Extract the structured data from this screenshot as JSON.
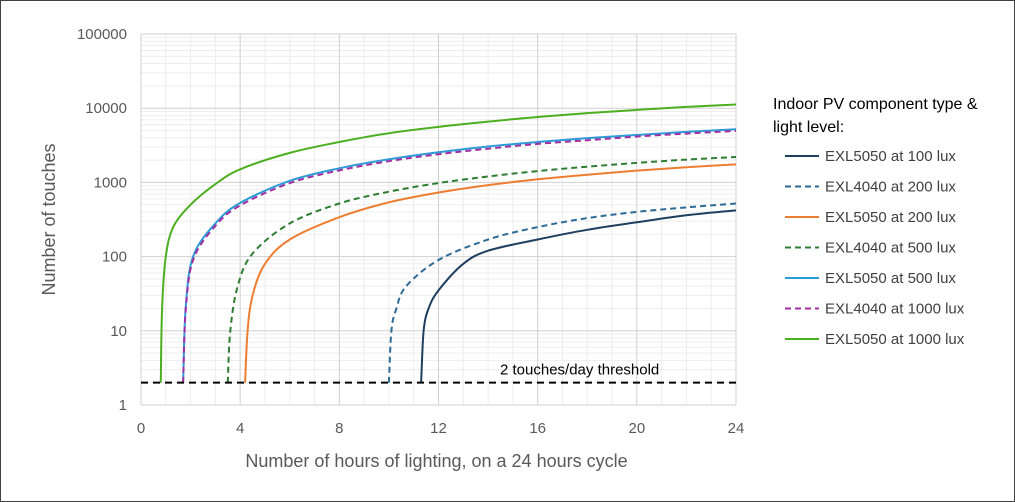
{
  "chart_data": {
    "type": "line",
    "title": "",
    "xlabel": "Number of hours of lighting, on a 24 hours cycle",
    "ylabel": "Number of touches",
    "xlim": [
      0,
      24
    ],
    "ylim": [
      1,
      100000
    ],
    "yscale": "log",
    "grid": true,
    "legend_position": "right",
    "x_ticks": [
      "0",
      "4",
      "8",
      "12",
      "16",
      "20",
      "24"
    ],
    "y_ticks": [
      "1",
      "10",
      "100",
      "1000",
      "10000",
      "100000"
    ],
    "legend_title": [
      "Indoor PV component type &",
      "light level:"
    ],
    "series": [
      {
        "name": "EXL5050 at 100 lux",
        "color": "#1f3f5f",
        "dash": false,
        "points": [
          [
            11.3,
            2
          ],
          [
            11.4,
            10
          ],
          [
            11.6,
            20
          ],
          [
            12,
            35
          ],
          [
            13,
            80
          ],
          [
            14,
            120
          ],
          [
            16,
            170
          ],
          [
            18,
            230
          ],
          [
            20,
            290
          ],
          [
            22,
            360
          ],
          [
            24,
            420
          ]
        ]
      },
      {
        "name": "EXL4040 at 200 lux",
        "color": "#2e6a96",
        "dash": true,
        "points": [
          [
            10,
            2
          ],
          [
            10.1,
            10
          ],
          [
            10.3,
            20
          ],
          [
            10.7,
            40
          ],
          [
            12,
            90
          ],
          [
            14,
            170
          ],
          [
            16,
            250
          ],
          [
            18,
            330
          ],
          [
            20,
            400
          ],
          [
            22,
            460
          ],
          [
            24,
            520
          ]
        ]
      },
      {
        "name": "EXL5050 at 200 lux",
        "color": "#ed7d31",
        "dash": false,
        "points": [
          [
            4.2,
            2
          ],
          [
            4.3,
            10
          ],
          [
            4.5,
            30
          ],
          [
            5,
            80
          ],
          [
            6,
            170
          ],
          [
            8,
            340
          ],
          [
            10,
            540
          ],
          [
            12,
            730
          ],
          [
            14,
            920
          ],
          [
            16,
            1100
          ],
          [
            18,
            1270
          ],
          [
            20,
            1440
          ],
          [
            22,
            1600
          ],
          [
            24,
            1750
          ]
        ]
      },
      {
        "name": "EXL4040 at 500 lux",
        "color": "#2e7d32",
        "dash": true,
        "points": [
          [
            3.5,
            2
          ],
          [
            3.6,
            10
          ],
          [
            3.9,
            40
          ],
          [
            4.5,
            110
          ],
          [
            6,
            280
          ],
          [
            8,
            520
          ],
          [
            10,
            750
          ],
          [
            12,
            980
          ],
          [
            14,
            1200
          ],
          [
            16,
            1420
          ],
          [
            18,
            1630
          ],
          [
            20,
            1830
          ],
          [
            22,
            2030
          ],
          [
            24,
            2200
          ]
        ]
      },
      {
        "name": "EXL5050 at 500 lux",
        "color": "#2e9ad8",
        "dash": false,
        "points": [
          [
            1.7,
            2
          ],
          [
            1.8,
            20
          ],
          [
            2.1,
            100
          ],
          [
            3,
            280
          ],
          [
            4,
            530
          ],
          [
            6,
            1050
          ],
          [
            8,
            1550
          ],
          [
            10,
            2050
          ],
          [
            12,
            2550
          ],
          [
            14,
            3050
          ],
          [
            16,
            3500
          ],
          [
            18,
            3950
          ],
          [
            20,
            4350
          ],
          [
            22,
            4800
          ],
          [
            24,
            5200
          ]
        ]
      },
      {
        "name": "EXL4040 at 1000 lux",
        "color": "#a12fa1",
        "dash": true,
        "points": [
          [
            1.7,
            2
          ],
          [
            1.8,
            18
          ],
          [
            2.1,
            90
          ],
          [
            3,
            260
          ],
          [
            4,
            490
          ],
          [
            6,
            980
          ],
          [
            8,
            1450
          ],
          [
            10,
            1930
          ],
          [
            12,
            2400
          ],
          [
            14,
            2850
          ],
          [
            16,
            3300
          ],
          [
            18,
            3700
          ],
          [
            20,
            4150
          ],
          [
            22,
            4550
          ],
          [
            24,
            4950
          ]
        ]
      },
      {
        "name": "EXL5050 at 1000 lux",
        "color": "#4caf1f",
        "dash": false,
        "points": [
          [
            0.8,
            2
          ],
          [
            0.85,
            20
          ],
          [
            1,
            100
          ],
          [
            1.3,
            250
          ],
          [
            2,
            500
          ],
          [
            3,
            950
          ],
          [
            4,
            1500
          ],
          [
            6,
            2500
          ],
          [
            8,
            3500
          ],
          [
            10,
            4600
          ],
          [
            12,
            5600
          ],
          [
            14,
            6600
          ],
          [
            16,
            7600
          ],
          [
            18,
            8600
          ],
          [
            20,
            9500
          ],
          [
            22,
            10400
          ],
          [
            24,
            11200
          ]
        ]
      }
    ],
    "threshold": {
      "value": 2,
      "label": "2 touches/day threshold",
      "color": "#000000"
    }
  }
}
